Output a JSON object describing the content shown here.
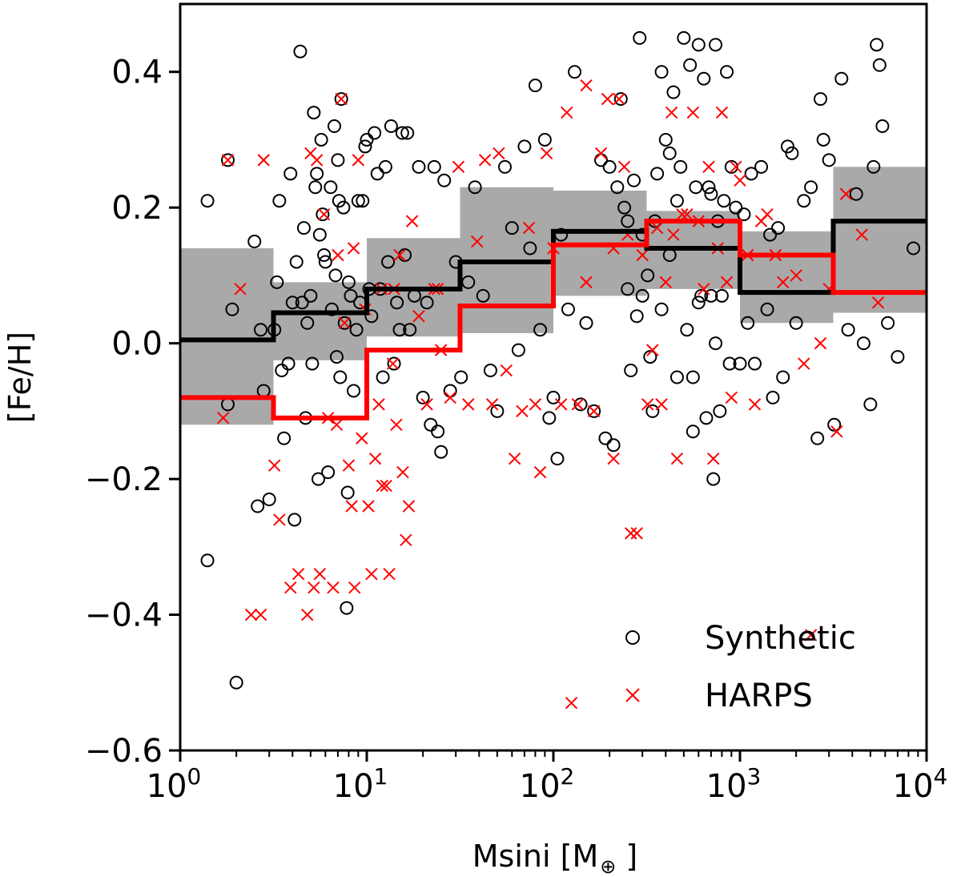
{
  "chart_data": {
    "type": "scatter",
    "title": "",
    "xlabel": "Msini [M",
    "xlabel_symbol": "⊕",
    "xlabel_suffix": " ]",
    "ylabel": "[Fe/H]",
    "xscale": "log",
    "xlim": [
      1,
      10000
    ],
    "ylim": [
      -0.6,
      0.5
    ],
    "x_ticks": [
      {
        "value": 1,
        "base": "10",
        "exp": "0"
      },
      {
        "value": 10,
        "base": "10",
        "exp": "1"
      },
      {
        "value": 100,
        "base": "10",
        "exp": "2"
      },
      {
        "value": 1000,
        "base": "10",
        "exp": "3"
      },
      {
        "value": 10000,
        "base": "10",
        "exp": "4"
      }
    ],
    "y_ticks": [
      {
        "value": 0.4,
        "label": "0.4"
      },
      {
        "value": 0.2,
        "label": "0.2"
      },
      {
        "value": 0.0,
        "label": "0.0"
      },
      {
        "value": -0.2,
        "label": "−0.2"
      },
      {
        "value": -0.4,
        "label": "−0.4"
      },
      {
        "value": -0.6,
        "label": "−0.6"
      }
    ],
    "legend": {
      "position": "bottom-right",
      "entries": [
        {
          "label": "Synthetic",
          "marker": "circle",
          "color": "#000000"
        },
        {
          "label": "HARPS",
          "marker": "x",
          "color": "#ff0000"
        }
      ]
    },
    "colors": {
      "synthetic": "#000000",
      "harps": "#ff0000",
      "band": "#a9a9a9"
    },
    "bin_edges": [
      1,
      3.162,
      10,
      31.62,
      100,
      316.2,
      1000,
      3162,
      10000
    ],
    "band": {
      "low": [
        -0.12,
        -0.025,
        0.01,
        0.015,
        0.07,
        0.08,
        0.03,
        0.045
      ],
      "high": [
        0.14,
        0.09,
        0.155,
        0.23,
        0.225,
        0.195,
        0.165,
        0.26
      ]
    },
    "synthetic_median": [
      0.005,
      0.045,
      0.08,
      0.12,
      0.165,
      0.14,
      0.075,
      0.18
    ],
    "harps_median": [
      -0.08,
      -0.11,
      -0.01,
      0.055,
      0.145,
      0.18,
      0.13,
      0.075
    ],
    "synthetic": [
      [
        1.4,
        0.21
      ],
      [
        1.8,
        0.27
      ],
      [
        1.9,
        0.05
      ],
      [
        2.0,
        -0.5
      ],
      [
        1.4,
        -0.32
      ],
      [
        1.8,
        -0.09
      ],
      [
        2.5,
        0.15
      ],
      [
        2.6,
        -0.24
      ],
      [
        2.7,
        0.02
      ],
      [
        2.8,
        -0.07
      ],
      [
        3.0,
        -0.23
      ],
      [
        3.2,
        0.02
      ],
      [
        3.3,
        0.09
      ],
      [
        3.4,
        0.21
      ],
      [
        3.5,
        -0.04
      ],
      [
        3.6,
        -0.14
      ],
      [
        3.8,
        -0.03
      ],
      [
        3.9,
        0.25
      ],
      [
        4.0,
        0.06
      ],
      [
        4.1,
        -0.26
      ],
      [
        4.2,
        0.12
      ],
      [
        4.4,
        0.43
      ],
      [
        4.5,
        0.06
      ],
      [
        4.6,
        0.17
      ],
      [
        4.7,
        -0.11
      ],
      [
        4.8,
        0.03
      ],
      [
        5.0,
        0.07
      ],
      [
        5.1,
        -0.03
      ],
      [
        5.2,
        0.34
      ],
      [
        5.3,
        0.23
      ],
      [
        5.4,
        0.25
      ],
      [
        5.5,
        -0.2
      ],
      [
        5.6,
        0.16
      ],
      [
        5.7,
        0.3
      ],
      [
        5.8,
        0.19
      ],
      [
        5.9,
        0.13
      ],
      [
        6.0,
        0.12
      ],
      [
        6.2,
        -0.19
      ],
      [
        6.4,
        0.23
      ],
      [
        6.5,
        0.05
      ],
      [
        6.7,
        0.32
      ],
      [
        6.8,
        0.1
      ],
      [
        6.9,
        -0.02
      ],
      [
        7.0,
        0.27
      ],
      [
        7.1,
        0.21
      ],
      [
        7.2,
        -0.05
      ],
      [
        7.3,
        0.36
      ],
      [
        7.5,
        0.2
      ],
      [
        7.6,
        0.03
      ],
      [
        7.8,
        -0.39
      ],
      [
        7.9,
        -0.22
      ],
      [
        8.0,
        0.09
      ],
      [
        8.2,
        0.07
      ],
      [
        8.5,
        -0.07
      ],
      [
        8.8,
        0.02
      ],
      [
        9.0,
        0.21
      ],
      [
        9.2,
        0.06
      ],
      [
        9.5,
        0.21
      ],
      [
        9.8,
        0.29
      ],
      [
        10.0,
        0.3
      ],
      [
        10.3,
        0.08
      ],
      [
        10.6,
        0.04
      ],
      [
        11.0,
        0.31
      ],
      [
        11.4,
        0.25
      ],
      [
        11.8,
        0.08
      ],
      [
        12.2,
        -0.05
      ],
      [
        12.6,
        0.26
      ],
      [
        13.0,
        0.12
      ],
      [
        13.5,
        0.32
      ],
      [
        14.0,
        -0.03
      ],
      [
        14.5,
        0.06
      ],
      [
        15.0,
        0.02
      ],
      [
        15.5,
        0.31
      ],
      [
        16.0,
        0.13
      ],
      [
        16.5,
        0.31
      ],
      [
        17.0,
        0.02
      ],
      [
        18.0,
        0.07
      ],
      [
        19.0,
        0.26
      ],
      [
        20.0,
        -0.08
      ],
      [
        21.0,
        0.06
      ],
      [
        22.0,
        -0.12
      ],
      [
        23.0,
        0.26
      ],
      [
        24.0,
        -0.13
      ],
      [
        25.0,
        -0.16
      ],
      [
        26.0,
        0.24
      ],
      [
        28.0,
        -0.07
      ],
      [
        30.0,
        0.12
      ],
      [
        32.0,
        -0.05
      ],
      [
        35.0,
        0.09
      ],
      [
        38.0,
        0.23
      ],
      [
        42.0,
        0.07
      ],
      [
        46.0,
        -0.04
      ],
      [
        50.0,
        -0.1
      ],
      [
        55.0,
        0.26
      ],
      [
        60.0,
        0.17
      ],
      [
        65.0,
        -0.01
      ],
      [
        70.0,
        0.29
      ],
      [
        75.0,
        0.14
      ],
      [
        80.0,
        0.38
      ],
      [
        85.0,
        0.02
      ],
      [
        90.0,
        0.3
      ],
      [
        95.0,
        -0.11
      ],
      [
        100.0,
        -0.08
      ],
      [
        105.0,
        -0.17
      ],
      [
        110.0,
        0.16
      ],
      [
        120.0,
        0.05
      ],
      [
        130.0,
        0.4
      ],
      [
        140.0,
        -0.09
      ],
      [
        150.0,
        0.03
      ],
      [
        165.0,
        -0.1
      ],
      [
        180.0,
        0.27
      ],
      [
        190.0,
        -0.14
      ],
      [
        200.0,
        0.26
      ],
      [
        210.0,
        -0.15
      ],
      [
        220.0,
        0.23
      ],
      [
        230.0,
        0.36
      ],
      [
        240.0,
        0.2
      ],
      [
        250.0,
        0.08
      ],
      [
        260.0,
        -0.04
      ],
      [
        270.0,
        0.24
      ],
      [
        280.0,
        0.04
      ],
      [
        290.0,
        0.45
      ],
      [
        300.0,
        0.16
      ],
      [
        320.0,
        0.1
      ],
      [
        340.0,
        -0.1
      ],
      [
        360.0,
        0.25
      ],
      [
        380.0,
        0.4
      ],
      [
        400.0,
        0.3
      ],
      [
        420.0,
        0.13
      ],
      [
        440.0,
        0.37
      ],
      [
        460.0,
        -0.05
      ],
      [
        480.0,
        0.26
      ],
      [
        500.0,
        0.45
      ],
      [
        520.0,
        0.02
      ],
      [
        540.0,
        0.41
      ],
      [
        560.0,
        -0.13
      ],
      [
        580.0,
        0.23
      ],
      [
        600.0,
        0.44
      ],
      [
        620.0,
        0.07
      ],
      [
        640.0,
        0.39
      ],
      [
        660.0,
        -0.11
      ],
      [
        680.0,
        0.23
      ],
      [
        700.0,
        0.07
      ],
      [
        720.0,
        -0.2
      ],
      [
        740.0,
        0.44
      ],
      [
        760.0,
        0.18
      ],
      [
        780.0,
        -0.1
      ],
      [
        800.0,
        0.07
      ],
      [
        820.0,
        0.21
      ],
      [
        850.0,
        0.4
      ],
      [
        880.0,
        -0.03
      ],
      [
        900.0,
        0.26
      ],
      [
        950.0,
        0.2
      ],
      [
        1000.0,
        -0.03
      ],
      [
        1050.0,
        0.19
      ],
      [
        1100.0,
        0.03
      ],
      [
        1150.0,
        0.25
      ],
      [
        1200.0,
        -0.03
      ],
      [
        1300.0,
        0.26
      ],
      [
        1400.0,
        0.05
      ],
      [
        1500.0,
        -0.08
      ],
      [
        1600.0,
        0.17
      ],
      [
        1700.0,
        -0.05
      ],
      [
        1800.0,
        0.29
      ],
      [
        1900.0,
        0.28
      ],
      [
        2000.0,
        0.03
      ],
      [
        2200.0,
        0.21
      ],
      [
        2400.0,
        0.23
      ],
      [
        2600.0,
        -0.14
      ],
      [
        2800.0,
        0.3
      ],
      [
        3000.0,
        0.27
      ],
      [
        3200.0,
        -0.12
      ],
      [
        3500.0,
        0.39
      ],
      [
        3800.0,
        0.02
      ],
      [
        4200.0,
        0.22
      ],
      [
        4600.0,
        0.0
      ],
      [
        5000.0,
        -0.09
      ],
      [
        5400.0,
        0.44
      ],
      [
        5800.0,
        0.32
      ],
      [
        6200.0,
        0.03
      ],
      [
        7000.0,
        -0.02
      ],
      [
        8500.0,
        0.14
      ],
      [
        5200.0,
        0.26
      ],
      [
        5600.0,
        0.41
      ],
      [
        2700.0,
        0.36
      ],
      [
        1450.0,
        0.16
      ],
      [
        420.0,
        0.28
      ],
      [
        460.0,
        0.21
      ],
      [
        380.0,
        0.05
      ],
      [
        600.0,
        0.06
      ],
      [
        560.0,
        -0.05
      ],
      [
        700.0,
        0.22
      ],
      [
        740.0,
        0.0
      ],
      [
        250.0,
        0.18
      ],
      [
        350.0,
        0.18
      ],
      [
        330.0,
        -0.02
      ],
      [
        300.0,
        0.07
      ]
    ],
    "harps": [
      [
        1.7,
        -0.11
      ],
      [
        1.8,
        0.27
      ],
      [
        2.1,
        0.08
      ],
      [
        2.4,
        -0.4
      ],
      [
        2.7,
        -0.4
      ],
      [
        2.8,
        0.27
      ],
      [
        3.2,
        -0.18
      ],
      [
        3.4,
        -0.26
      ],
      [
        3.9,
        -0.36
      ],
      [
        4.3,
        -0.34
      ],
      [
        4.8,
        -0.4
      ],
      [
        5.0,
        0.28
      ],
      [
        5.2,
        -0.36
      ],
      [
        5.4,
        0.27
      ],
      [
        5.6,
        -0.34
      ],
      [
        5.9,
        0.19
      ],
      [
        6.2,
        -0.11
      ],
      [
        6.6,
        -0.36
      ],
      [
        6.9,
        -0.12
      ],
      [
        7.3,
        0.36
      ],
      [
        7.6,
        0.03
      ],
      [
        8.0,
        -0.18
      ],
      [
        8.3,
        -0.24
      ],
      [
        8.6,
        -0.36
      ],
      [
        9.0,
        0.27
      ],
      [
        9.4,
        -0.14
      ],
      [
        9.8,
        0.05
      ],
      [
        10.2,
        -0.24
      ],
      [
        10.6,
        -0.34
      ],
      [
        11.1,
        -0.17
      ],
      [
        11.6,
        -0.09
      ],
      [
        12.1,
        -0.21
      ],
      [
        12.7,
        -0.21
      ],
      [
        13.2,
        -0.34
      ],
      [
        13.8,
        -0.03
      ],
      [
        14.4,
        -0.12
      ],
      [
        15.0,
        0.13
      ],
      [
        15.6,
        -0.19
      ],
      [
        16.2,
        -0.29
      ],
      [
        16.8,
        -0.24
      ],
      [
        17.5,
        0.18
      ],
      [
        19.0,
        0.04
      ],
      [
        21.0,
        -0.09
      ],
      [
        23.0,
        0.08
      ],
      [
        25.0,
        -0.01
      ],
      [
        28.0,
        -0.08
      ],
      [
        31.0,
        0.26
      ],
      [
        35.0,
        -0.09
      ],
      [
        39.0,
        0.15
      ],
      [
        43.0,
        0.27
      ],
      [
        47.0,
        -0.09
      ],
      [
        51.0,
        0.28
      ],
      [
        56.0,
        -0.04
      ],
      [
        62.0,
        -0.17
      ],
      [
        68.0,
        -0.1
      ],
      [
        74.0,
        0.17
      ],
      [
        80.0,
        -0.09
      ],
      [
        85.0,
        -0.19
      ],
      [
        92.0,
        0.28
      ],
      [
        100.0,
        0.14
      ],
      [
        110.0,
        -0.09
      ],
      [
        118.0,
        0.34
      ],
      [
        125.0,
        -0.53
      ],
      [
        135.0,
        -0.09
      ],
      [
        150.0,
        0.38
      ],
      [
        165.0,
        -0.1
      ],
      [
        180.0,
        0.28
      ],
      [
        195.0,
        0.36
      ],
      [
        210.0,
        -0.17
      ],
      [
        225.0,
        0.36
      ],
      [
        240.0,
        0.26
      ],
      [
        260.0,
        -0.28
      ],
      [
        280.0,
        -0.28
      ],
      [
        300.0,
        0.13
      ],
      [
        320.0,
        -0.09
      ],
      [
        340.0,
        -0.01
      ],
      [
        360.0,
        0.17
      ],
      [
        380.0,
        -0.09
      ],
      [
        400.0,
        0.09
      ],
      [
        430.0,
        0.34
      ],
      [
        460.0,
        -0.17
      ],
      [
        490.0,
        0.19
      ],
      [
        520.0,
        0.19
      ],
      [
        560.0,
        0.34
      ],
      [
        600.0,
        0.18
      ],
      [
        640.0,
        0.08
      ],
      [
        680.0,
        0.26
      ],
      [
        720.0,
        -0.17
      ],
      [
        760.0,
        0.14
      ],
      [
        800.0,
        0.34
      ],
      [
        850.0,
        0.09
      ],
      [
        900.0,
        -0.08
      ],
      [
        950.0,
        0.26
      ],
      [
        1000.0,
        0.24
      ],
      [
        1100.0,
        0.13
      ],
      [
        1200.0,
        -0.09
      ],
      [
        1300.0,
        0.18
      ],
      [
        1400.0,
        0.19
      ],
      [
        1550.0,
        0.13
      ],
      [
        1700.0,
        0.09
      ],
      [
        2000.0,
        0.1
      ],
      [
        2200.0,
        -0.03
      ],
      [
        2400.0,
        -0.43
      ],
      [
        2700.0,
        0.0
      ],
      [
        3000.0,
        0.08
      ],
      [
        3300.0,
        -0.13
      ],
      [
        3700.0,
        0.22
      ],
      [
        4500.0,
        0.16
      ],
      [
        5500.0,
        0.06
      ],
      [
        250.0,
        0.16
      ],
      [
        440.0,
        0.16
      ],
      [
        210.0,
        0.14
      ],
      [
        150.0,
        0.09
      ],
      [
        14.0,
        0.08
      ],
      [
        12.0,
        0.08
      ],
      [
        24.0,
        0.08
      ],
      [
        7.0,
        0.13
      ],
      [
        8.5,
        0.14
      ]
    ]
  }
}
